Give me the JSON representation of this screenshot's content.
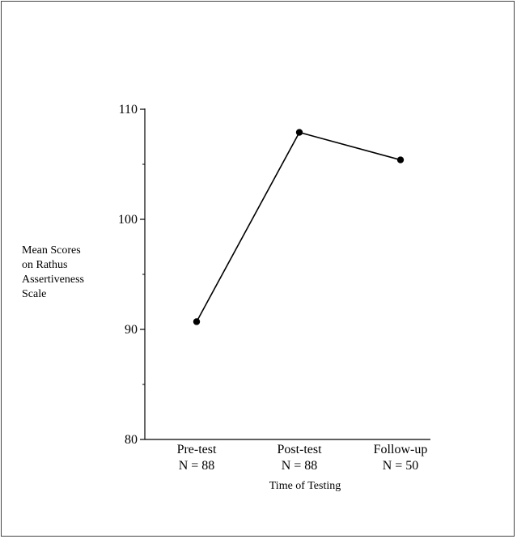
{
  "chart_data": {
    "type": "line",
    "categories": [
      "Pre-test",
      "Post-test",
      "Follow-up"
    ],
    "category_sublabels": [
      "N = 88",
      "N = 88",
      "N = 50"
    ],
    "values": [
      90.7,
      107.9,
      105.4
    ],
    "ylim": [
      80,
      110
    ],
    "yticks": [
      80,
      90,
      100,
      110
    ],
    "minor_yticks": [
      85,
      95,
      105
    ],
    "ylabel_lines": [
      "Mean Scores",
      "on Rathus",
      "Assertiveness",
      "Scale"
    ],
    "xlabel": "Time of Testing",
    "grid": false,
    "marker": "filled-circle",
    "line_color": "#000000"
  }
}
